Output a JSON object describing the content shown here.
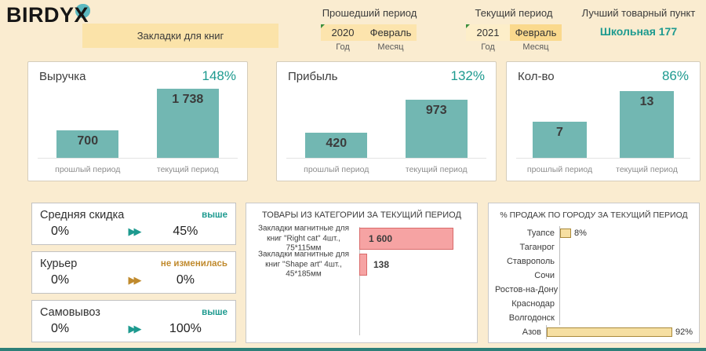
{
  "brand": {
    "logo": "BIRDYX"
  },
  "icons": {
    "trend_arrows": "▶▶"
  },
  "header": {
    "category_label": "Закладки для книг",
    "past_period": {
      "title": "Прошедший период",
      "year": "2020",
      "month": "Февраль",
      "year_caption": "Год",
      "month_caption": "Месяц"
    },
    "current_period": {
      "title": "Текущий период",
      "year": "2021",
      "month": "Февраль",
      "year_caption": "Год",
      "month_caption": "Месяц"
    },
    "best_point": {
      "title": "Лучший товарный пункт",
      "value": "Школьная 177"
    }
  },
  "metric_cards": [
    {
      "title": "Средняя скидка",
      "status": "выше",
      "status_color": "#1d9a8f",
      "from": "0%",
      "to": "45%"
    },
    {
      "title": "Курьер",
      "status": "не изменилась",
      "status_color": "#c08a2d",
      "from": "0%",
      "to": "0%"
    },
    {
      "title": "Самовывоз",
      "status": "выше",
      "status_color": "#1d9a8f",
      "from": "0%",
      "to": "100%"
    }
  ],
  "colors": {
    "background": "#faecd0",
    "teal_text": "#1d9a8f",
    "gold_text": "#c08a2d",
    "bar_teal": "#72b7b2",
    "bar_pink": "#f6a3a3",
    "bar_yellow": "#f6dfa2",
    "accent_blob": "#5cb9c0"
  },
  "chart_data": [
    {
      "type": "bar",
      "title": "Выручка",
      "annotation": "148%",
      "categories": [
        "прошлый период",
        "текущий период"
      ],
      "values": [
        700,
        1738
      ],
      "value_labels": [
        "700",
        "1 738"
      ],
      "ylim": [
        0,
        1800
      ]
    },
    {
      "type": "bar",
      "title": "Прибыль",
      "annotation": "132%",
      "categories": [
        "прошлый период",
        "текущий период"
      ],
      "values": [
        420,
        973
      ],
      "value_labels": [
        "420",
        "973"
      ],
      "ylim": [
        0,
        1200
      ]
    },
    {
      "type": "bar",
      "title": "Кол-во",
      "annotation": "86%",
      "categories": [
        "прошлый период",
        "текущий период"
      ],
      "values": [
        7,
        13
      ],
      "value_labels": [
        "7",
        "13"
      ],
      "ylim": [
        0,
        14
      ]
    },
    {
      "type": "bar",
      "orientation": "horizontal",
      "title": "ТОВАРЫ ИЗ КАТЕГОРИИ ЗА ТЕКУЩИЙ ПЕРИОД",
      "categories": [
        "Закладки магнитные для книг \"Right cat\" 4шт., 75*115мм",
        "Закладки магнитные для книг \"Shape art\" 4шт., 45*185мм"
      ],
      "values": [
        1600,
        138
      ],
      "value_labels": [
        "1 600",
        "138"
      ],
      "xlim": [
        0,
        1600
      ]
    },
    {
      "type": "bar",
      "orientation": "horizontal",
      "unit": "%",
      "title": "% ПРОДАЖ ПО ГОРОДУ ЗА ТЕКУЩИЙ ПЕРИОД",
      "categories": [
        "Туапсе",
        "Таганрог",
        "Ставрополь",
        "Сочи",
        "Ростов-на-Дону",
        "Краснодар",
        "Волгодонск",
        "Азов"
      ],
      "values": [
        8,
        0,
        0,
        0,
        0,
        0,
        0,
        92
      ],
      "value_labels": [
        "8%",
        "",
        "",
        "",
        "",
        "",
        "",
        "92%"
      ],
      "xlim": [
        0,
        100
      ]
    }
  ]
}
